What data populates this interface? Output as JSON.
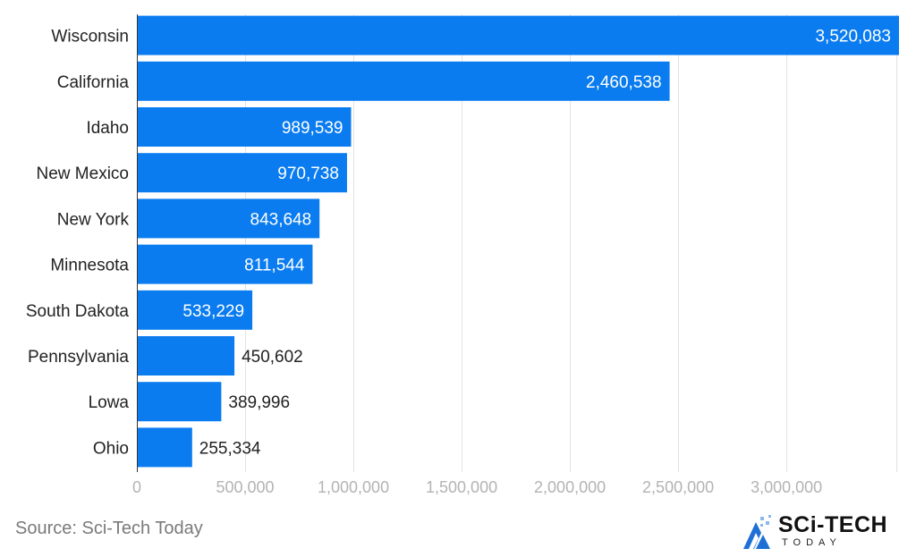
{
  "chart_data": {
    "type": "bar",
    "orientation": "horizontal",
    "categories": [
      "Wisconsin",
      "California",
      "Idaho",
      "New Mexico",
      "New York",
      "Minnesota",
      "South Dakota",
      "Pennsylvania",
      "Lowa",
      "Ohio"
    ],
    "values": [
      3520083,
      2460538,
      989539,
      970738,
      843648,
      811544,
      533229,
      450602,
      389996,
      255334
    ],
    "value_labels": [
      "3,520,083",
      "2,460,538",
      "989,539",
      "970,738",
      "843,648",
      "811,544",
      "533,229",
      "450,602",
      "389,996",
      "255,334"
    ],
    "xlim": [
      0,
      3520083
    ],
    "xticks": [
      0,
      500000,
      1000000,
      1500000,
      2000000,
      2500000,
      3000000
    ],
    "xtick_labels": [
      "0",
      "500,000",
      "1,000,000",
      "1,500,000",
      "2,000,000",
      "2,500,000",
      "3,000,000"
    ],
    "grid": true,
    "title": "",
    "xlabel": "",
    "ylabel": "",
    "bar_color": "#0a7cf0",
    "label_inside_color": "#ffffff",
    "label_outside_color": "#222222"
  },
  "source": {
    "text": "Source: Sci-Tech Today"
  },
  "logo": {
    "title": "SCi-TECH",
    "subtitle": "TODAY"
  },
  "colors": {
    "grid": "#e3e3e3",
    "axis": "#333333",
    "logo_blue": "#1f6fd6",
    "logo_light": "#8ab8f0"
  }
}
